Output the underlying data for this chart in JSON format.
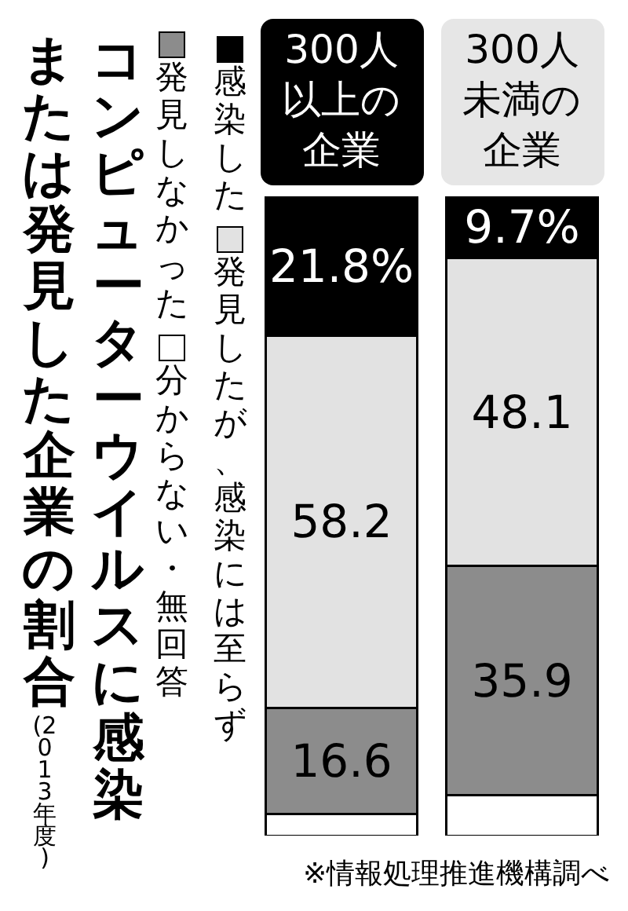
{
  "chart_data": {
    "type": "bar",
    "stacked": true,
    "legend": "left",
    "title": "コンピューターウイルスに感染または発見した企業の割合",
    "subtitle": "(2013年度)",
    "categories": [
      "300人以上の企業",
      "300人未満の企業"
    ],
    "series": [
      {
        "name": "分からない・無回答",
        "color": "#ffffff",
        "values": [
          3.4,
          6.3
        ],
        "value_labels": [
          null,
          null
        ]
      },
      {
        "name": "発見しなかった",
        "color": "#8c8c8c",
        "values": [
          16.6,
          35.9
        ],
        "value_labels": [
          "16.6",
          "35.9"
        ]
      },
      {
        "name": "発見したが、感染には至らず",
        "color": "#e2e2e2",
        "values": [
          58.2,
          48.1
        ],
        "value_labels": [
          "58.2",
          "48.1"
        ]
      },
      {
        "name": "感染した",
        "color": "#000000",
        "values": [
          21.8,
          9.7
        ],
        "value_labels": [
          "21.8%",
          "9.7%"
        ]
      }
    ],
    "annotations": [
      "※情報処理推進機構調べ"
    ]
  }
}
